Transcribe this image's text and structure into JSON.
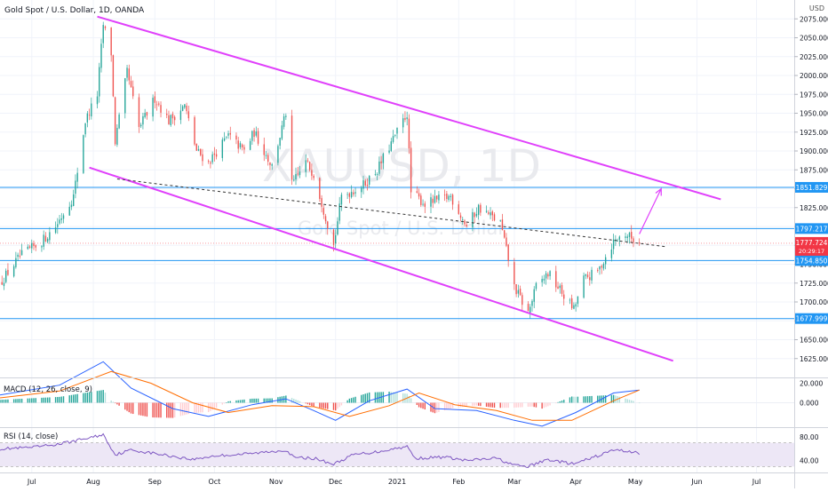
{
  "header": {
    "symbol_title": "Gold Spot / U.S. Dollar, 1D, OANDA",
    "currency": "USD"
  },
  "watermark": {
    "symbol": "XAUUSD, 1D",
    "name": "Gold Spot / U.S. Dollar"
  },
  "colors": {
    "up": "#26a69a",
    "down": "#ef5350",
    "channel": "#e040fb",
    "level": "#2196f3",
    "macd": "#2962ff",
    "signal": "#ff6d00",
    "rsi": "#7e57c2",
    "rsi_band": "#ede7f6",
    "price_tag": "#f23645"
  },
  "chart_data": [
    {
      "type": "candlestick",
      "title": "Gold Spot / U.S. Dollar, 1D, OANDA",
      "ylim": [
        1600,
        2100
      ],
      "y_ticks": [
        1625,
        1650,
        1675,
        1700,
        1725,
        1750,
        1775,
        1800,
        1825,
        1850,
        1875,
        1900,
        1925,
        1950,
        1975,
        2000,
        2025,
        2050,
        2075
      ],
      "x_range": [
        "2020-06-15",
        "2021-07-20"
      ],
      "x_ticks": [
        {
          "date": "2020-07-01",
          "label": "Jul"
        },
        {
          "date": "2020-08-01",
          "label": "Aug"
        },
        {
          "date": "2020-09-01",
          "label": "Sep"
        },
        {
          "date": "2020-10-01",
          "label": "Oct"
        },
        {
          "date": "2020-11-01",
          "label": "Nov"
        },
        {
          "date": "2020-12-01",
          "label": "Dec"
        },
        {
          "date": "2021-01-01",
          "label": "2021"
        },
        {
          "date": "2021-02-01",
          "label": "Feb"
        },
        {
          "date": "2021-03-01",
          "label": "Mar"
        },
        {
          "date": "2021-04-01",
          "label": "Apr"
        },
        {
          "date": "2021-05-01",
          "label": "May"
        },
        {
          "date": "2021-06-01",
          "label": "Jun"
        },
        {
          "date": "2021-07-01",
          "label": "Jul"
        }
      ],
      "close_path": [
        [
          "2020-06-15",
          1725
        ],
        [
          "2020-06-25",
          1760
        ],
        [
          "2020-07-06",
          1780
        ],
        [
          "2020-07-13",
          1800
        ],
        [
          "2020-07-22",
          1840
        ],
        [
          "2020-07-28",
          1940
        ],
        [
          "2020-08-03",
          1975
        ],
        [
          "2020-08-06",
          2067
        ],
        [
          "2020-08-10",
          2030
        ],
        [
          "2020-08-12",
          1912
        ],
        [
          "2020-08-18",
          2005
        ],
        [
          "2020-08-24",
          1930
        ],
        [
          "2020-09-01",
          1970
        ],
        [
          "2020-09-08",
          1940
        ],
        [
          "2020-09-16",
          1960
        ],
        [
          "2020-09-22",
          1900
        ],
        [
          "2020-09-28",
          1885
        ],
        [
          "2020-10-08",
          1920
        ],
        [
          "2020-10-16",
          1900
        ],
        [
          "2020-10-21",
          1925
        ],
        [
          "2020-10-30",
          1880
        ],
        [
          "2020-11-06",
          1950
        ],
        [
          "2020-11-09",
          1855
        ],
        [
          "2020-11-16",
          1885
        ],
        [
          "2020-11-20",
          1870
        ],
        [
          "2020-11-30",
          1775
        ],
        [
          "2020-12-04",
          1840
        ],
        [
          "2020-12-15",
          1855
        ],
        [
          "2020-12-22",
          1875
        ],
        [
          "2021-01-06",
          1950
        ],
        [
          "2021-01-08",
          1845
        ],
        [
          "2021-01-15",
          1830
        ],
        [
          "2021-01-28",
          1840
        ],
        [
          "2021-02-05",
          1800
        ],
        [
          "2021-02-11",
          1825
        ],
        [
          "2021-02-22",
          1805
        ],
        [
          "2021-03-01",
          1720
        ],
        [
          "2021-03-08",
          1685
        ],
        [
          "2021-03-12",
          1720
        ],
        [
          "2021-03-18",
          1738
        ],
        [
          "2021-03-31",
          1690
        ],
        [
          "2021-04-05",
          1730
        ],
        [
          "2021-04-12",
          1740
        ],
        [
          "2021-04-20",
          1780
        ],
        [
          "2021-04-26",
          1790
        ],
        [
          "2021-05-03",
          1777.724
        ]
      ],
      "annotations": {
        "channel_upper": [
          [
            "2020-08-03",
            2078
          ],
          [
            "2021-06-13",
            1836
          ]
        ],
        "channel_lower": [
          [
            "2020-07-30",
            1878
          ],
          [
            "2021-05-20",
            1622
          ]
        ],
        "dashed_trend": [
          [
            "2020-08-13",
            1863
          ],
          [
            "2021-05-17",
            1773
          ]
        ],
        "projection_arrow": [
          [
            "2021-05-03",
            1790
          ],
          [
            "2021-05-14",
            1850
          ]
        ],
        "horizontal_levels": [
          1851.829,
          1797.217,
          1754.85,
          1677.999
        ],
        "current_price": 1777.724,
        "countdown": "20:29:17"
      },
      "price_labels": [
        "1851.829",
        "1797.217",
        "1777.724",
        "1754.850",
        "1677.999"
      ]
    },
    {
      "type": "histogram+line",
      "title": "MACD (12, 26, close, 9)",
      "ylim": [
        -25,
        25
      ],
      "y_ticks": [
        20,
        0
      ],
      "y_tick_labels": [
        "20.000",
        "0.000"
      ],
      "macd": [
        [
          "2020-06-15",
          8
        ],
        [
          "2020-07-15",
          18
        ],
        [
          "2020-08-06",
          42
        ],
        [
          "2020-08-20",
          15
        ],
        [
          "2020-09-10",
          -6
        ],
        [
          "2020-09-28",
          -14
        ],
        [
          "2020-10-20",
          -2
        ],
        [
          "2020-11-06",
          4
        ],
        [
          "2020-11-20",
          -8
        ],
        [
          "2020-12-01",
          -18
        ],
        [
          "2020-12-18",
          2
        ],
        [
          "2021-01-06",
          14
        ],
        [
          "2021-01-20",
          -6
        ],
        [
          "2021-02-10",
          -8
        ],
        [
          "2021-03-01",
          -18
        ],
        [
          "2021-03-15",
          -24
        ],
        [
          "2021-04-01",
          -10
        ],
        [
          "2021-04-20",
          10
        ],
        [
          "2021-05-03",
          13
        ]
      ],
      "signal": [
        [
          "2020-06-15",
          5
        ],
        [
          "2020-07-15",
          12
        ],
        [
          "2020-08-10",
          32
        ],
        [
          "2020-08-30",
          20
        ],
        [
          "2020-09-20",
          0
        ],
        [
          "2020-10-08",
          -10
        ],
        [
          "2020-10-30",
          -3
        ],
        [
          "2020-11-20",
          -4
        ],
        [
          "2020-12-08",
          -14
        ],
        [
          "2020-12-28",
          -3
        ],
        [
          "2021-01-12",
          10
        ],
        [
          "2021-01-30",
          -2
        ],
        [
          "2021-02-20",
          -8
        ],
        [
          "2021-03-10",
          -18
        ],
        [
          "2021-03-30",
          -18
        ],
        [
          "2021-04-20",
          2
        ],
        [
          "2021-05-03",
          13
        ]
      ]
    },
    {
      "type": "line",
      "title": "RSI (14, close)",
      "ylim": [
        20,
        95
      ],
      "y_ticks": [
        80,
        40
      ],
      "y_tick_labels": [
        "80.00",
        "40.00"
      ],
      "band": [
        30,
        70
      ],
      "rsi": [
        [
          "2020-06-15",
          60
        ],
        [
          "2020-07-01",
          62
        ],
        [
          "2020-07-15",
          68
        ],
        [
          "2020-08-01",
          80
        ],
        [
          "2020-08-06",
          84
        ],
        [
          "2020-08-12",
          50
        ],
        [
          "2020-08-20",
          58
        ],
        [
          "2020-09-01",
          52
        ],
        [
          "2020-09-20",
          42
        ],
        [
          "2020-10-01",
          48
        ],
        [
          "2020-10-20",
          52
        ],
        [
          "2020-11-06",
          58
        ],
        [
          "2020-11-10",
          45
        ],
        [
          "2020-11-20",
          44
        ],
        [
          "2020-11-30",
          34
        ],
        [
          "2020-12-10",
          50
        ],
        [
          "2020-12-22",
          55
        ],
        [
          "2021-01-06",
          64
        ],
        [
          "2021-01-10",
          44
        ],
        [
          "2021-01-25",
          46
        ],
        [
          "2021-02-05",
          40
        ],
        [
          "2021-02-20",
          44
        ],
        [
          "2021-03-01",
          32
        ],
        [
          "2021-03-08",
          30
        ],
        [
          "2021-03-18",
          42
        ],
        [
          "2021-03-31",
          34
        ],
        [
          "2021-04-12",
          48
        ],
        [
          "2021-04-20",
          58
        ],
        [
          "2021-04-28",
          56
        ],
        [
          "2021-05-03",
          52
        ]
      ]
    }
  ]
}
